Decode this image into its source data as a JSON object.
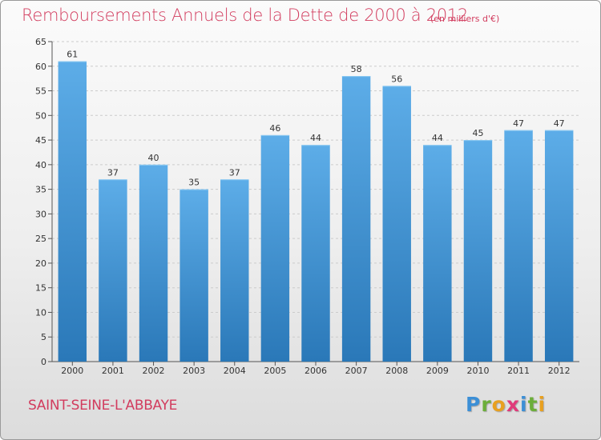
{
  "header": {
    "title": "Remboursements Annuels de la Dette de 2000 à 2012",
    "unit_note": "(en milliers d'€)"
  },
  "footer": {
    "commune": "SAINT-SEINE-L'ABBAYE",
    "logo": {
      "letters": [
        "P",
        "r",
        "o",
        "x",
        "i",
        "t",
        "i"
      ],
      "colors": [
        "#3c8fd6",
        "#6cae3a",
        "#e8a020",
        "#e03a7a",
        "#3c8fd6",
        "#6cae3a",
        "#e8a020"
      ]
    }
  },
  "colors": {
    "title": "#d23c5e",
    "bar_top": "#5dade8",
    "bar_bottom": "#2a78b8",
    "grid": "#cccccc",
    "axis_text": "#333333"
  },
  "chart_data": {
    "type": "bar",
    "categories": [
      "2000",
      "2001",
      "2002",
      "2003",
      "2004",
      "2005",
      "2006",
      "2007",
      "2008",
      "2009",
      "2010",
      "2011",
      "2012"
    ],
    "values": [
      61,
      37,
      40,
      35,
      37,
      46,
      44,
      58,
      56,
      44,
      45,
      47,
      47
    ],
    "value_labels": [
      "61",
      "37",
      "40",
      "35",
      "37",
      "46",
      "44",
      "58",
      "56",
      "44",
      "45",
      "47",
      "47"
    ],
    "y_ticks": [
      "0",
      "5",
      "10",
      "15",
      "20",
      "25",
      "30",
      "35",
      "40",
      "45",
      "50",
      "55",
      "60",
      "65"
    ],
    "ylim": [
      0,
      65
    ],
    "grid": true,
    "legend": "none"
  }
}
